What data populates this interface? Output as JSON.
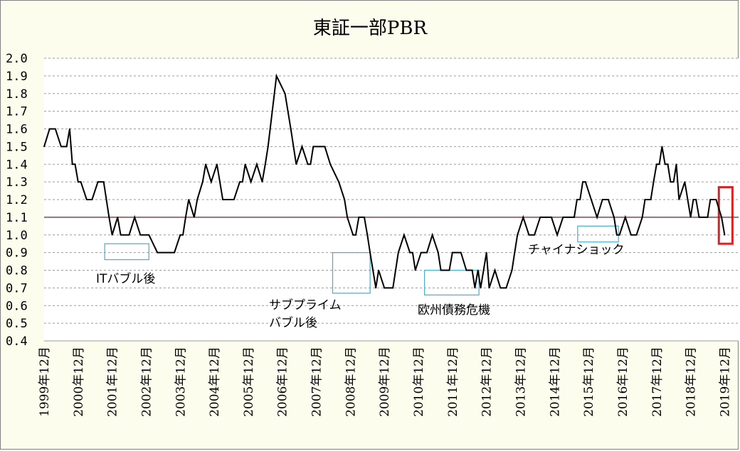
{
  "chart_data": {
    "type": "line",
    "title": "東証一部PBR",
    "xlabel": "",
    "ylabel": "",
    "ylim": [
      0.4,
      2.0
    ],
    "yticks": [
      "2.0",
      "1.9",
      "1.8",
      "1.7",
      "1.6",
      "1.5",
      "1.4",
      "1.3",
      "1.2",
      "1.1",
      "1.0",
      "0.9",
      "0.8",
      "0.7",
      "0.6",
      "0.5",
      "0.4"
    ],
    "xtick_labels": [
      "1999年12月",
      "2000年12月",
      "2001年12月",
      "2002年12月",
      "2003年12月",
      "2004年12月",
      "2005年12月",
      "2006年12月",
      "2007年12月",
      "2008年12月",
      "2009年12月",
      "2010年12月",
      "2011年12月",
      "2012年12月",
      "2013年12月",
      "2014年12月",
      "2015年12月",
      "2016年12月",
      "2017年12月",
      "2018年12月",
      "2019年12月"
    ],
    "grid": true,
    "reference_line": {
      "value": 1.1,
      "color": "#8b1a1a"
    },
    "series": [
      {
        "name": "東証一部PBR",
        "color": "#000000",
        "x": [
          1999.92,
          2000.08,
          2000.25,
          2000.42,
          2000.58,
          2000.67,
          2000.75,
          2000.83,
          2000.92,
          2001.0,
          2001.17,
          2001.33,
          2001.5,
          2001.67,
          2001.83,
          2001.92,
          2002.08,
          2002.17,
          2002.25,
          2002.42,
          2002.58,
          2002.75,
          2002.83,
          2003.0,
          2003.25,
          2003.5,
          2003.75,
          2003.92,
          2004.0,
          2004.08,
          2004.17,
          2004.33,
          2004.42,
          2004.58,
          2004.67,
          2004.83,
          2005.0,
          2005.17,
          2005.33,
          2005.5,
          2005.67,
          2005.75,
          2005.83,
          2006.0,
          2006.17,
          2006.33,
          2006.42,
          2006.5,
          2006.75,
          2007.0,
          2007.17,
          2007.33,
          2007.5,
          2007.67,
          2007.75,
          2007.83,
          2008.0,
          2008.17,
          2008.33,
          2008.58,
          2008.75,
          2008.83,
          2009.0,
          2009.08,
          2009.17,
          2009.33,
          2009.42,
          2009.5,
          2009.67,
          2009.75,
          2009.92,
          2010.08,
          2010.17,
          2010.33,
          2010.5,
          2010.67,
          2010.75,
          2010.83,
          2011.0,
          2011.17,
          2011.33,
          2011.5,
          2011.58,
          2011.67,
          2011.75,
          2011.83,
          2011.92,
          2012.0,
          2012.17,
          2012.33,
          2012.5,
          2012.58,
          2012.67,
          2012.75,
          2012.92,
          2013.0,
          2013.17,
          2013.33,
          2013.5,
          2013.67,
          2013.75,
          2013.83,
          2014.0,
          2014.17,
          2014.33,
          2014.5,
          2014.58,
          2014.67,
          2014.75,
          2014.83,
          2015.0,
          2015.17,
          2015.33,
          2015.5,
          2015.58,
          2015.67,
          2015.75,
          2015.83,
          2016.0,
          2016.17,
          2016.33,
          2016.5,
          2016.67,
          2016.75,
          2016.83,
          2017.0,
          2017.17,
          2017.33,
          2017.5,
          2017.58,
          2017.67,
          2017.75,
          2017.83,
          2017.92,
          2018.0,
          2018.08,
          2018.17,
          2018.25,
          2018.33,
          2018.42,
          2018.5,
          2018.58,
          2018.75,
          2018.92,
          2019.0,
          2019.08,
          2019.17,
          2019.25,
          2019.42,
          2019.5,
          2019.67,
          2019.83,
          2019.92
        ],
        "values": [
          1.5,
          1.6,
          1.6,
          1.5,
          1.5,
          1.6,
          1.4,
          1.4,
          1.3,
          1.3,
          1.2,
          1.2,
          1.3,
          1.3,
          1.1,
          1.0,
          1.1,
          1.0,
          1.0,
          1.0,
          1.1,
          1.0,
          1.0,
          1.0,
          0.9,
          0.9,
          0.9,
          1.0,
          1.0,
          1.1,
          1.2,
          1.1,
          1.2,
          1.3,
          1.4,
          1.3,
          1.4,
          1.2,
          1.2,
          1.2,
          1.3,
          1.3,
          1.4,
          1.3,
          1.4,
          1.3,
          1.4,
          1.5,
          1.9,
          1.8,
          1.6,
          1.4,
          1.5,
          1.4,
          1.4,
          1.5,
          1.5,
          1.5,
          1.4,
          1.3,
          1.2,
          1.1,
          1.0,
          1.0,
          1.1,
          1.1,
          1.0,
          0.9,
          0.7,
          0.8,
          0.7,
          0.7,
          0.7,
          0.9,
          1.0,
          0.9,
          0.9,
          0.8,
          0.9,
          0.9,
          1.0,
          0.9,
          0.8,
          0.8,
          0.8,
          0.8,
          0.9,
          0.9,
          0.9,
          0.8,
          0.8,
          0.7,
          0.8,
          0.7,
          0.9,
          0.7,
          0.8,
          0.7,
          0.7,
          0.8,
          0.9,
          1.0,
          1.1,
          1.0,
          1.0,
          1.1,
          1.1,
          1.1,
          1.1,
          1.1,
          1.0,
          1.1,
          1.1,
          1.1,
          1.2,
          1.2,
          1.3,
          1.3,
          1.2,
          1.1,
          1.2,
          1.2,
          1.1,
          1.0,
          1.0,
          1.1,
          1.0,
          1.0,
          1.1,
          1.2,
          1.2,
          1.2,
          1.3,
          1.4,
          1.4,
          1.5,
          1.4,
          1.4,
          1.3,
          1.3,
          1.4,
          1.2,
          1.3,
          1.1,
          1.2,
          1.2,
          1.1,
          1.1,
          1.1,
          1.2,
          1.2,
          1.1,
          1.0
        ]
      }
    ],
    "annotations": [
      {
        "label": "ITバブル後",
        "x_range": [
          2001.7,
          2003.0
        ],
        "y_range": [
          0.86,
          0.95
        ],
        "box_color": "#4bacc6"
      },
      {
        "label": "サブプライム\nバブル後",
        "x_range": [
          2008.4,
          2009.5
        ],
        "y_range": [
          0.67,
          0.9
        ],
        "box_color": "#4bacc6"
      },
      {
        "label": "欧州債務危機",
        "x_range": [
          2011.1,
          2012.7
        ],
        "y_range": [
          0.66,
          0.8
        ],
        "box_color": "#4bacc6"
      },
      {
        "label": "チャイナショック",
        "x_range": [
          2015.6,
          2016.8
        ],
        "y_range": [
          0.96,
          1.05
        ],
        "box_color": "#4bacc6"
      },
      {
        "label": "",
        "x_range": [
          2019.75,
          2020.15
        ],
        "y_range": [
          0.95,
          1.27
        ],
        "box_color": "#e02020"
      }
    ]
  }
}
